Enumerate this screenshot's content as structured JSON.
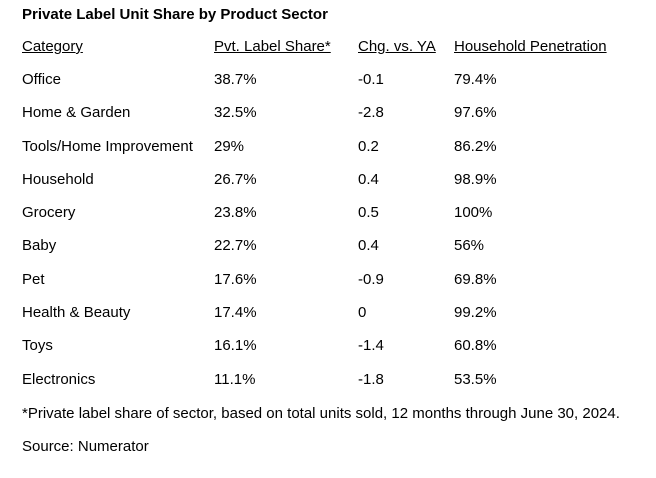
{
  "title": "Private Label Unit Share by Product Sector",
  "table": {
    "headers": [
      "Category",
      "Pvt. Label Share*",
      "Chg. vs. YA",
      "Household Penetration"
    ],
    "rows": [
      [
        "Office",
        "38.7%",
        "-0.1",
        "79.4%"
      ],
      [
        "Home & Garden",
        "32.5%",
        "-2.8",
        "97.6%"
      ],
      [
        "Tools/Home Improvement",
        "29%",
        "0.2",
        "86.2%"
      ],
      [
        "Household",
        "26.7%",
        "0.4",
        "98.9%"
      ],
      [
        "Grocery",
        "23.8%",
        "0.5",
        "100%"
      ],
      [
        "Baby",
        "22.7%",
        "0.4",
        "56%"
      ],
      [
        "Pet",
        "17.6%",
        "-0.9",
        "69.8%"
      ],
      [
        "Health & Beauty",
        "17.4%",
        "0",
        "99.2%"
      ],
      [
        "Toys",
        "16.1%",
        "-1.4",
        "60.8%"
      ],
      [
        "Electronics",
        "11.1%",
        "-1.8",
        "53.5%"
      ]
    ]
  },
  "footnote": "*Private label share of sector, based on total units sold, 12 months through June 30, 2024.",
  "source": "Source: Numerator"
}
